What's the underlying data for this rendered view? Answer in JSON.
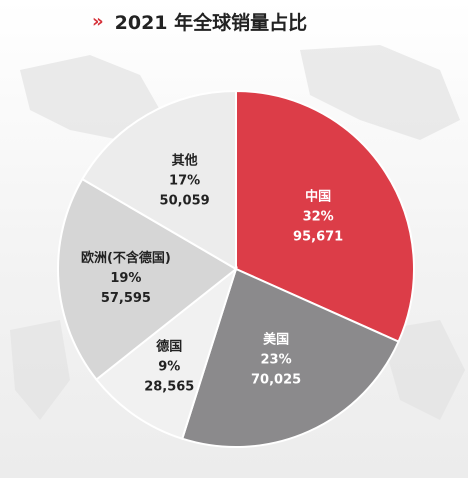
{
  "header": {
    "chevron_glyph": "»",
    "title": "2021 年全球销量占比"
  },
  "chart_data": {
    "type": "pie",
    "title": "2021 年全球销量占比",
    "categories": [
      "中国",
      "美国",
      "德国",
      "欧洲(不含德国)",
      "其他"
    ],
    "values": [
      95671,
      70025,
      28565,
      57595,
      50059
    ],
    "percent_labels": [
      "32%",
      "23%",
      "9%",
      "19%",
      "17%"
    ],
    "value_labels": [
      "95,671",
      "70,025",
      "28,565",
      "57,595",
      "50,059"
    ],
    "colors": [
      "#dc3d48",
      "#8b8a8c",
      "#f1f1f1",
      "#d6d6d6",
      "#ececec"
    ],
    "label_colors": [
      "#ffffff",
      "#ffffff",
      "#222222",
      "#222222",
      "#222222"
    ],
    "start": "top",
    "direction": "clockwise",
    "legend": "none"
  }
}
